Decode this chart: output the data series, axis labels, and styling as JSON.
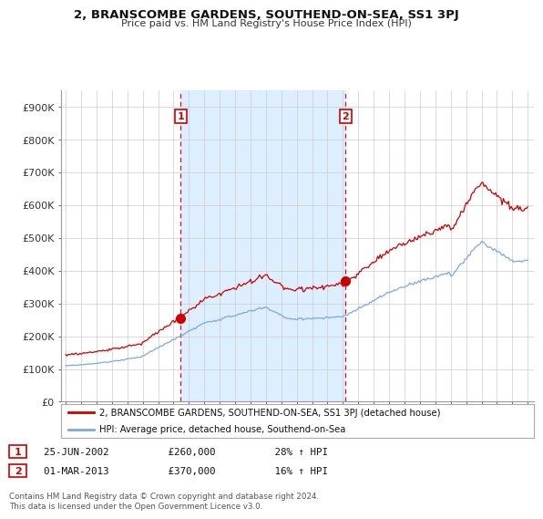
{
  "title": "2, BRANSCOMBE GARDENS, SOUTHEND-ON-SEA, SS1 3PJ",
  "subtitle": "Price paid vs. HM Land Registry's House Price Index (HPI)",
  "red_label": "2, BRANSCOMBE GARDENS, SOUTHEND-ON-SEA, SS1 3PJ (detached house)",
  "blue_label": "HPI: Average price, detached house, Southend-on-Sea",
  "transactions": [
    {
      "num": 1,
      "date": "25-JUN-2002",
      "price": 260000,
      "hpi_pct": "28%",
      "dir": "↑"
    },
    {
      "num": 2,
      "date": "01-MAR-2013",
      "price": 370000,
      "hpi_pct": "16%",
      "dir": "↑"
    }
  ],
  "footer": "Contains HM Land Registry data © Crown copyright and database right 2024.\nThis data is licensed under the Open Government Licence v3.0.",
  "red_color": "#cc0000",
  "blue_color": "#7aaadd",
  "shade_color": "#ddeeff",
  "dashed_color": "#cc0000",
  "grid_color": "#cccccc",
  "background_color": "#ffffff",
  "ylim": [
    0,
    950000
  ],
  "yticks": [
    0,
    100000,
    200000,
    300000,
    400000,
    500000,
    600000,
    700000,
    800000,
    900000
  ],
  "ytick_labels": [
    "£0",
    "£100K",
    "£200K",
    "£300K",
    "£400K",
    "£500K",
    "£600K",
    "£700K",
    "£800K",
    "£900K"
  ],
  "t1_year": 2002.458,
  "t2_year": 2013.167,
  "t1_price": 260000,
  "t2_price": 370000
}
